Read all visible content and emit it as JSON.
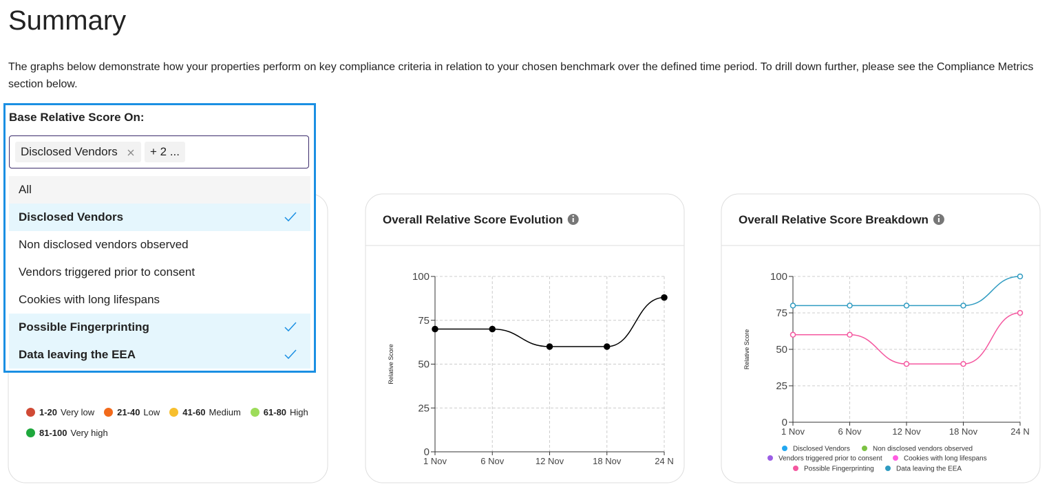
{
  "title": "Summary",
  "description": "The graphs below demonstrate how your properties perform on key compliance criteria in relation to your chosen benchmark over the defined time period. To drill down further, please see the Compliance Metrics section below.",
  "filter": {
    "label": "Base Relative Score On:",
    "chips": [
      "Disclosed Vendors",
      "+ 2 ..."
    ],
    "options": [
      {
        "label": "All",
        "selected": false
      },
      {
        "label": "Disclosed Vendors",
        "selected": true
      },
      {
        "label": "Non disclosed vendors observed",
        "selected": false
      },
      {
        "label": "Vendors triggered prior to consent",
        "selected": false
      },
      {
        "label": "Cookies with long lifespans",
        "selected": false
      },
      {
        "label": "Possible Fingerprinting",
        "selected": true
      },
      {
        "label": "Data leaving the EEA",
        "selected": true
      }
    ]
  },
  "score_legend": [
    {
      "range": "1-20",
      "label": "Very low",
      "color": "#d04a35"
    },
    {
      "range": "21-40",
      "label": "Low",
      "color": "#f26a1b"
    },
    {
      "range": "41-60",
      "label": "Medium",
      "color": "#f7bf2e"
    },
    {
      "range": "61-80",
      "label": "High",
      "color": "#9ddc5a"
    },
    {
      "range": "81-100",
      "label": "Very high",
      "color": "#1ea83c"
    }
  ],
  "charts": [
    {
      "type": "line",
      "title": "Overall Relative Score Evolution",
      "y_label": "Relative Score",
      "categories": [
        "1 Nov",
        "6 Nov",
        "12 Nov",
        "18 Nov",
        "24 N"
      ],
      "values": [
        70,
        70,
        60,
        60,
        88
      ],
      "color": "#000000",
      "ylim": [
        0,
        100
      ],
      "yticks": [
        0,
        25,
        50,
        75,
        100
      ],
      "grid": true
    },
    {
      "type": "line",
      "title": "Overall Relative Score Breakdown",
      "y_label": "Relative Score",
      "categories": [
        "1 Nov",
        "6 Nov",
        "12 Nov",
        "18 Nov",
        "24 N"
      ],
      "series": [
        {
          "name": "Disclosed Vendors",
          "color": "#22a7f0",
          "values": [
            null,
            null,
            null,
            null,
            null
          ]
        },
        {
          "name": "Non disclosed vendors observed",
          "color": "#7cc242",
          "values": [
            null,
            null,
            null,
            null,
            null
          ]
        },
        {
          "name": "Vendors triggered prior to consent",
          "color": "#9b5de5",
          "values": [
            null,
            null,
            null,
            null,
            null
          ]
        },
        {
          "name": "Cookies with long lifespans",
          "color": "#ff5ce1",
          "values": [
            null,
            null,
            null,
            null,
            null
          ]
        },
        {
          "name": "Possible Fingerprinting",
          "color": "#f4579f",
          "values": [
            60,
            60,
            40,
            40,
            75
          ]
        },
        {
          "name": "Data leaving the EEA",
          "color": "#2f9bc1",
          "values": [
            80,
            80,
            80,
            80,
            100
          ]
        }
      ],
      "ylim": [
        0,
        100
      ],
      "yticks": [
        0,
        25,
        50,
        75,
        100
      ],
      "grid": true
    }
  ]
}
